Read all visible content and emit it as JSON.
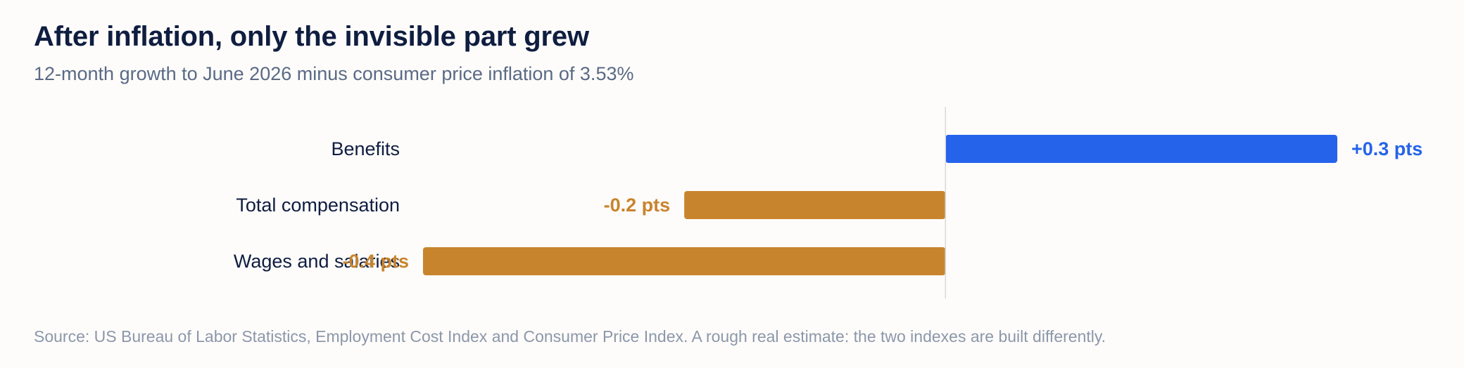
{
  "header": {
    "title": "After inflation, only the invisible part grew",
    "subtitle": "12-month growth to June 2026 minus consumer price inflation of 3.53%"
  },
  "footer": {
    "source": "Source: US Bureau of Labor Statistics, Employment Cost Index and Consumer Price Index. A rough real estimate: the two indexes are built differently."
  },
  "chart_data": {
    "type": "bar",
    "orientation": "horizontal",
    "title": "After inflation, only the invisible part grew",
    "subtitle": "12-month growth to June 2026 minus consumer price inflation of 3.53%",
    "xlabel": "",
    "ylabel": "",
    "categories": [
      "Benefits",
      "Total compensation",
      "Wages and salaries"
    ],
    "values": [
      0.3,
      -0.2,
      -0.4
    ],
    "data_labels": [
      "+0.3 pts",
      "-0.2 pts",
      "-0.4 pts"
    ],
    "xlim": [
      -0.4,
      0.3
    ],
    "grid": false,
    "legend": "none",
    "colors": {
      "positive": "#2563eb",
      "negative": "#c8842d",
      "zero_line": "#d9d9d9",
      "category_text": "#0f1d40"
    }
  }
}
